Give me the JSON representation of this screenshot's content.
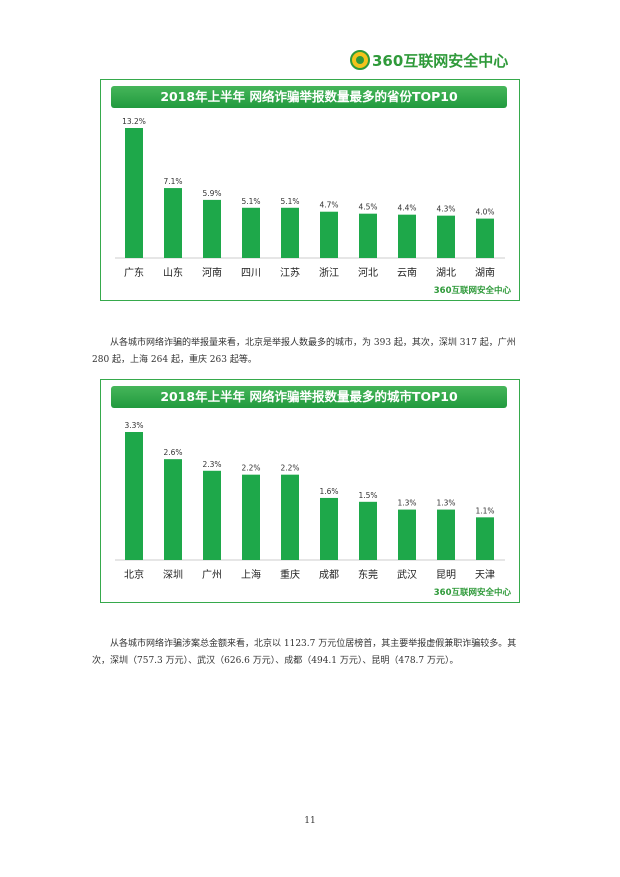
{
  "header": {
    "logo_text": "360互联网安全中心"
  },
  "chart_data": [
    {
      "type": "bar",
      "title": "2018年上半年 网络诈骗举报数量最多的省份TOP10",
      "categories": [
        "广东",
        "山东",
        "河南",
        "四川",
        "江苏",
        "浙江",
        "河北",
        "云南",
        "湖北",
        "湖南"
      ],
      "values": [
        13.2,
        7.1,
        5.9,
        5.1,
        5.1,
        4.7,
        4.5,
        4.4,
        4.3,
        4.0
      ],
      "value_labels": [
        "13.2%",
        "7.1%",
        "5.9%",
        "5.1%",
        "5.1%",
        "4.7%",
        "4.5%",
        "4.4%",
        "4.3%",
        "4.0%"
      ],
      "color": "#1ea84a",
      "footer_logo": "360互联网安全中心"
    },
    {
      "type": "bar",
      "title": "2018年上半年 网络诈骗举报数量最多的城市TOP10",
      "categories": [
        "北京",
        "深圳",
        "广州",
        "上海",
        "重庆",
        "成都",
        "东莞",
        "武汉",
        "昆明",
        "天津"
      ],
      "values": [
        3.3,
        2.6,
        2.3,
        2.2,
        2.2,
        1.6,
        1.5,
        1.3,
        1.3,
        1.1
      ],
      "value_labels": [
        "3.3%",
        "2.6%",
        "2.3%",
        "2.2%",
        "2.2%",
        "1.6%",
        "1.5%",
        "1.3%",
        "1.3%",
        "1.1%"
      ],
      "color": "#1ea84a",
      "footer_logo": "360互联网安全中心"
    }
  ],
  "paragraphs": {
    "p1": "从各城市网络诈骗的举报量来看，北京是举报人数最多的城市，为 393 起，其次，深圳 317 起，广州 280 起，上海 264 起，重庆 263 起等。",
    "p2": "从各城市网络诈骗涉案总金额来看，北京以 1123.7 万元位居榜首，其主要举报虚假兼职诈骗较多。其次，深圳（757.3 万元）、武汉（626.6 万元）、成都（494.1 万元）、昆明（478.7 万元）。"
  },
  "page": {
    "number": "11"
  }
}
